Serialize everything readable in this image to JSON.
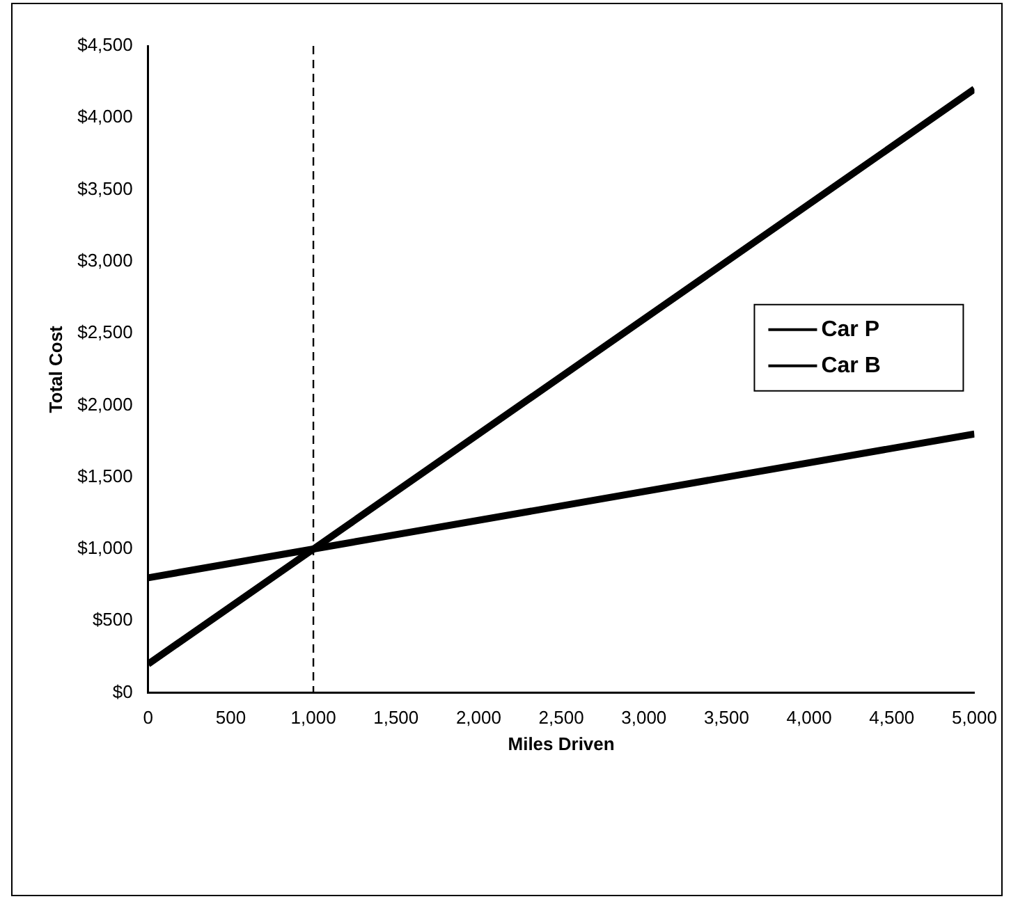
{
  "chart_data": {
    "type": "line",
    "xlabel": "Miles Driven",
    "ylabel": "Total Cost",
    "x": [
      0,
      1000,
      5000
    ],
    "series": [
      {
        "name": "Car P",
        "color": "#000000",
        "values": [
          200,
          1000,
          4200
        ]
      },
      {
        "name": "Car B",
        "color": "#000000",
        "values": [
          800,
          1000,
          1800
        ]
      }
    ],
    "xlim": [
      0,
      5000
    ],
    "xticks": [
      0,
      500,
      {
        "value": 1000,
        "label": "1,000"
      },
      {
        "value": 1500,
        "label": "1,500"
      },
      {
        "value": 2000,
        "label": "2,000"
      },
      {
        "value": 2500,
        "label": "2,500"
      },
      {
        "value": 3000,
        "label": "3,000"
      },
      {
        "value": 3500,
        "label": "3,500"
      },
      {
        "value": 4000,
        "label": "4,000"
      },
      {
        "value": 4500,
        "label": "4,500"
      },
      {
        "value": 5000,
        "label": "5,000"
      }
    ],
    "ylim": [
      0,
      4500
    ],
    "yticks": [
      {
        "value": 0,
        "label": "$0"
      },
      {
        "value": 500,
        "label": "$500"
      },
      {
        "value": 1000,
        "label": "$1,000"
      },
      {
        "value": 1500,
        "label": "$1,500"
      },
      {
        "value": 2000,
        "label": "$2,000"
      },
      {
        "value": 2500,
        "label": "$2,500"
      },
      {
        "value": 3000,
        "label": "$3,000"
      },
      {
        "value": 3500,
        "label": "$3,500"
      },
      {
        "value": 4000,
        "label": "$4,000"
      },
      {
        "value": 4500,
        "label": "$4,500"
      }
    ],
    "ref_lines": [
      {
        "axis": "x",
        "value": 1000,
        "color": "#000000",
        "line_style": "dashed"
      }
    ],
    "grid": false,
    "legend": "right",
    "marker": "none",
    "line_style": "solid"
  }
}
